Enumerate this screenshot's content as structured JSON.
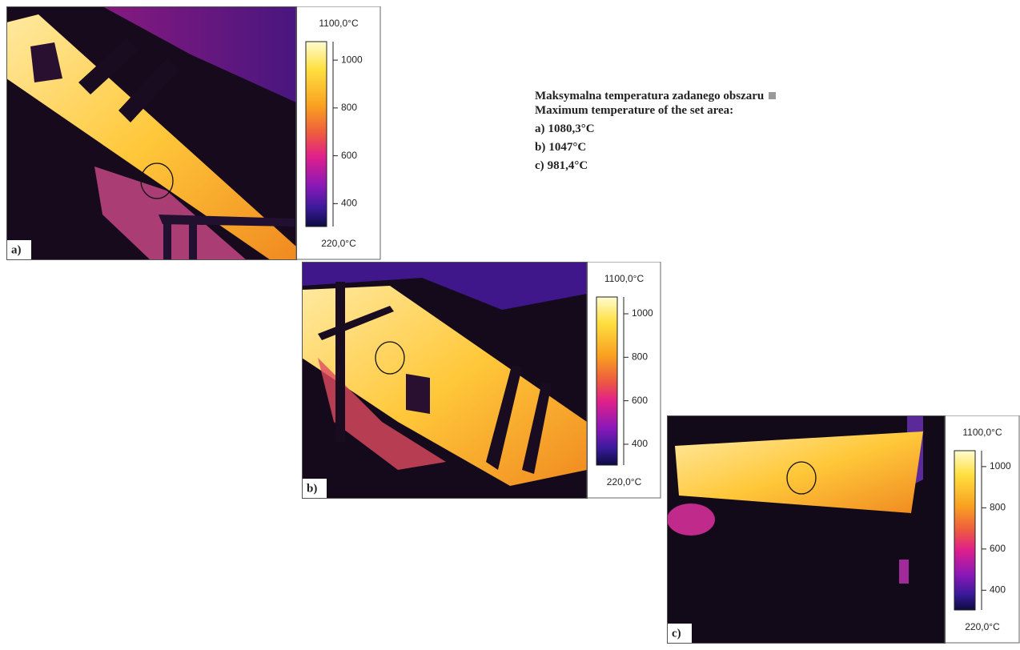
{
  "caption": {
    "title_pl": "Maksymalna temperatura zadanego obszaru",
    "title_en": "Maximum temperature of the set area:",
    "items": [
      {
        "label": "a)",
        "value": "1080,3°C"
      },
      {
        "label": "b)",
        "value": "1047°C"
      },
      {
        "label": "c)",
        "value": "981,4°C"
      }
    ]
  },
  "panels": [
    {
      "label": "a)",
      "scale": {
        "max": "1100,0°C",
        "min": "220,0°C",
        "ticks": [
          1000,
          800,
          600,
          400
        ]
      }
    },
    {
      "label": "b)",
      "scale": {
        "max": "1100,0°C",
        "min": "220,0°C",
        "ticks": [
          1000,
          800,
          600,
          400
        ]
      }
    },
    {
      "label": "c)",
      "scale": {
        "max": "1100,0°C",
        "min": "220,0°C",
        "ticks": [
          1000,
          800,
          600,
          400
        ]
      }
    }
  ]
}
